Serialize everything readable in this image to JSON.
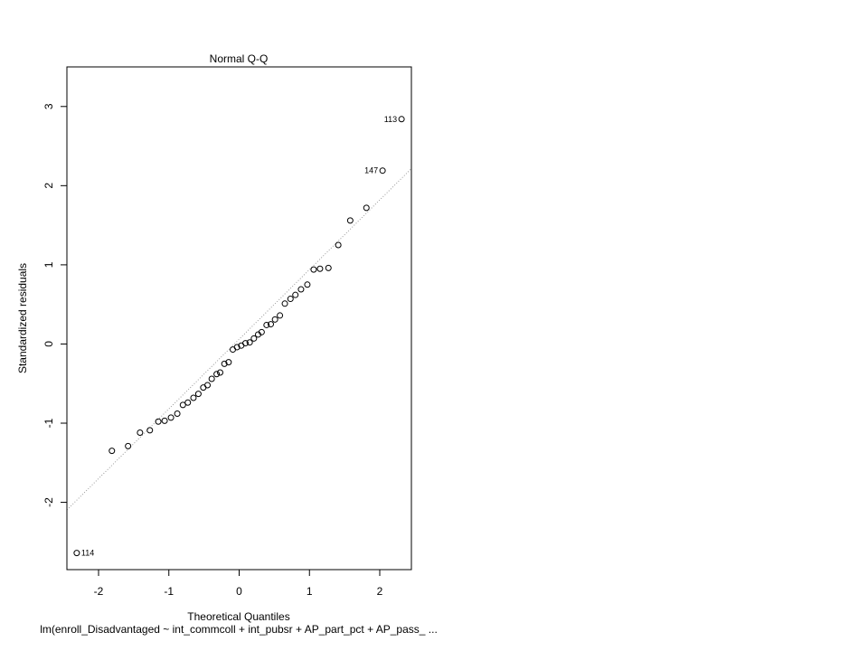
{
  "chart_data": {
    "type": "scatter",
    "title": "Normal Q-Q",
    "xlabel": "Theoretical Quantiles",
    "ylabel": "Standardized residuals",
    "caption": "lm(enroll_Disadvantaged ~ int_commcoll + int_pubsr + AP_part_pct + AP_pass_ ...",
    "xlim": [
      -2.45,
      2.45
    ],
    "ylim": [
      -2.85,
      3.5
    ],
    "x_ticks": [
      -2,
      -1,
      0,
      1,
      2
    ],
    "y_ticks": [
      -2,
      -1,
      0,
      1,
      2,
      3
    ],
    "x_tick_labels": [
      "-2",
      "-1",
      "0",
      "1",
      "2"
    ],
    "y_tick_labels": [
      "-2",
      "-1",
      "0",
      "1",
      "2",
      "3"
    ],
    "grid": false,
    "reference_line": {
      "intercept": 0.06,
      "slope": 0.88,
      "style": "dotted",
      "color": "#999999"
    },
    "points": [
      {
        "x": -2.31,
        "y": -2.64,
        "label": "114"
      },
      {
        "x": -1.81,
        "y": -1.35
      },
      {
        "x": -1.58,
        "y": -1.29
      },
      {
        "x": -1.41,
        "y": -1.12
      },
      {
        "x": -1.27,
        "y": -1.09
      },
      {
        "x": -1.15,
        "y": -0.98
      },
      {
        "x": -1.06,
        "y": -0.97
      },
      {
        "x": -0.97,
        "y": -0.93
      },
      {
        "x": -0.88,
        "y": -0.88
      },
      {
        "x": -0.8,
        "y": -0.77
      },
      {
        "x": -0.73,
        "y": -0.74
      },
      {
        "x": -0.65,
        "y": -0.68
      },
      {
        "x": -0.58,
        "y": -0.63
      },
      {
        "x": -0.51,
        "y": -0.55
      },
      {
        "x": -0.45,
        "y": -0.52
      },
      {
        "x": -0.39,
        "y": -0.44
      },
      {
        "x": -0.32,
        "y": -0.38
      },
      {
        "x": -0.27,
        "y": -0.36
      },
      {
        "x": -0.21,
        "y": -0.25
      },
      {
        "x": -0.15,
        "y": -0.23
      },
      {
        "x": -0.09,
        "y": -0.07
      },
      {
        "x": -0.03,
        "y": -0.04
      },
      {
        "x": 0.03,
        "y": -0.02
      },
      {
        "x": 0.09,
        "y": 0.01
      },
      {
        "x": 0.15,
        "y": 0.02
      },
      {
        "x": 0.21,
        "y": 0.07
      },
      {
        "x": 0.27,
        "y": 0.12
      },
      {
        "x": 0.32,
        "y": 0.15
      },
      {
        "x": 0.39,
        "y": 0.24
      },
      {
        "x": 0.45,
        "y": 0.25
      },
      {
        "x": 0.51,
        "y": 0.31
      },
      {
        "x": 0.58,
        "y": 0.36
      },
      {
        "x": 0.65,
        "y": 0.51
      },
      {
        "x": 0.73,
        "y": 0.57
      },
      {
        "x": 0.8,
        "y": 0.62
      },
      {
        "x": 0.88,
        "y": 0.69
      },
      {
        "x": 0.97,
        "y": 0.75
      },
      {
        "x": 1.06,
        "y": 0.94
      },
      {
        "x": 1.15,
        "y": 0.95
      },
      {
        "x": 1.27,
        "y": 0.96
      },
      {
        "x": 1.41,
        "y": 1.25
      },
      {
        "x": 1.58,
        "y": 1.56
      },
      {
        "x": 1.81,
        "y": 1.72
      },
      {
        "x": 2.04,
        "y": 2.19,
        "label": "147"
      },
      {
        "x": 2.31,
        "y": 2.84,
        "label": "113"
      }
    ]
  }
}
